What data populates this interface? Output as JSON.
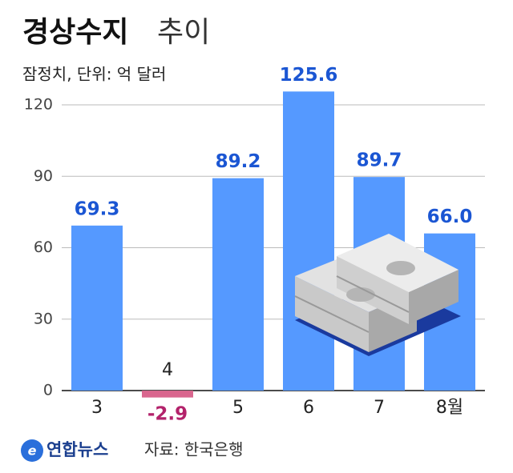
{
  "chart_data": {
    "type": "bar",
    "title": "경상수지",
    "title_suffix": "추이",
    "subtitle": "잠정치, 단위: 억 달러",
    "categories": [
      "3",
      "4",
      "5",
      "6",
      "7",
      "8월"
    ],
    "values": [
      69.3,
      -2.9,
      89.2,
      125.6,
      89.7,
      66.0
    ],
    "value_labels": [
      "69.3",
      "-2.9",
      "89.2",
      "125.6",
      "89.7",
      "66.0"
    ],
    "color": "#5599ff",
    "negative_color": "#d9668e",
    "label_color": "#1b56d3",
    "negative_label_color": "#b3226b",
    "ylim": [
      -5,
      130
    ],
    "yticks": [
      0,
      30,
      60,
      90,
      120
    ],
    "grid": true,
    "logo": "연합뉴스",
    "source": "자료: 한국은행"
  }
}
